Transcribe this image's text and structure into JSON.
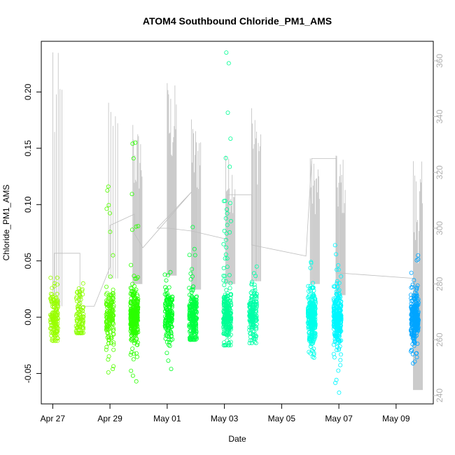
{
  "chart_data": {
    "type": "scatter",
    "title": "ATOM4 Southbound Chloride_PM1_AMS",
    "xlabel": "Date",
    "ylabel": "Chloride_PM1_AMS",
    "x_ticks": [
      "Apr 27",
      "Apr 29",
      "May 01",
      "May 03",
      "May 05",
      "May 07",
      "May 09"
    ],
    "x_range_days": [
      -0.4,
      13.3
    ],
    "y_left_range": [
      -0.077,
      0.245
    ],
    "y_left_ticks": [
      "-0.05",
      "0.00",
      "0.05",
      "0.10",
      "0.15",
      "0.20"
    ],
    "y_left_tick_values": [
      -0.05,
      0.0,
      0.05,
      0.1,
      0.15,
      0.2
    ],
    "y_right_range": [
      237,
      367
    ],
    "y_right_ticks": [
      "240",
      "260",
      "280",
      "300",
      "320",
      "340",
      "360"
    ],
    "y_right_tick_values": [
      240,
      260,
      280,
      300,
      320,
      340,
      360
    ],
    "y_right_color": "#bebebe",
    "grid": false,
    "clusters": [
      {
        "day": 0.05,
        "color": "#99ff00",
        "min": -0.021,
        "max": 0.035,
        "n": 140
      },
      {
        "day": 0.95,
        "color": "#8cff00",
        "min": -0.014,
        "max": 0.03,
        "n": 90
      },
      {
        "day": 2.0,
        "color": "#55ff00",
        "min": -0.049,
        "max": 0.116,
        "n": 160
      },
      {
        "day": 2.85,
        "color": "#2bff00",
        "min": -0.057,
        "max": 0.155,
        "n": 320
      },
      {
        "day": 4.05,
        "color": "#00ff22",
        "min": -0.046,
        "max": 0.04,
        "n": 150
      },
      {
        "day": 4.9,
        "color": "#00ff40",
        "min": -0.02,
        "max": 0.08,
        "n": 220
      },
      {
        "day": 6.1,
        "color": "#00ff95",
        "min": -0.025,
        "max": 0.235,
        "n": 260
      },
      {
        "day": 7.0,
        "color": "#00ffa8",
        "min": -0.023,
        "max": 0.045,
        "n": 160
      },
      {
        "day": 9.05,
        "color": "#00ffea",
        "min": -0.036,
        "max": 0.049,
        "n": 300
      },
      {
        "day": 9.95,
        "color": "#00f7ff",
        "min": -0.067,
        "max": 0.064,
        "n": 280
      },
      {
        "day": 12.65,
        "color": "#00a5ff",
        "min": -0.041,
        "max": 0.055,
        "n": 260
      }
    ],
    "gray_line": {
      "color": "#bebebe",
      "points": [
        [
          0.05,
          276
        ],
        [
          0.05,
          291
        ],
        [
          0.95,
          291
        ],
        [
          0.95,
          272
        ],
        [
          1.45,
          272
        ],
        [
          2.0,
          286
        ],
        [
          2.0,
          301
        ],
        [
          2.85,
          305
        ],
        [
          2.85,
          298
        ],
        [
          3.15,
          293
        ],
        [
          4.85,
          313
        ],
        [
          3.65,
          300
        ],
        [
          4.05,
          300
        ],
        [
          4.85,
          299
        ],
        [
          6.1,
          296
        ],
        [
          6.1,
          312
        ],
        [
          6.95,
          312
        ],
        [
          6.95,
          294
        ],
        [
          8.85,
          290
        ],
        [
          9.05,
          325
        ],
        [
          9.9,
          325
        ],
        [
          9.9,
          284
        ],
        [
          12.65,
          282
        ],
        [
          12.65,
          280
        ]
      ],
      "spikes": [
        {
          "day": 0.05,
          "low": 272,
          "high": 363,
          "n": 6
        },
        {
          "day": 2.0,
          "low": 282,
          "high": 345,
          "n": 5
        },
        {
          "day": 2.85,
          "low": 280,
          "high": 337,
          "n": 14
        },
        {
          "day": 4.05,
          "low": 283,
          "high": 352,
          "n": 14
        },
        {
          "day": 4.9,
          "low": 278,
          "high": 339,
          "n": 14
        },
        {
          "day": 6.1,
          "low": 280,
          "high": 326,
          "n": 14
        },
        {
          "day": 7.0,
          "low": 281,
          "high": 343,
          "n": 12
        },
        {
          "day": 9.05,
          "low": 280,
          "high": 325,
          "n": 14
        },
        {
          "day": 9.95,
          "low": 276,
          "high": 326,
          "n": 14
        },
        {
          "day": 12.65,
          "low": 242,
          "high": 324,
          "n": 14
        }
      ]
    }
  }
}
